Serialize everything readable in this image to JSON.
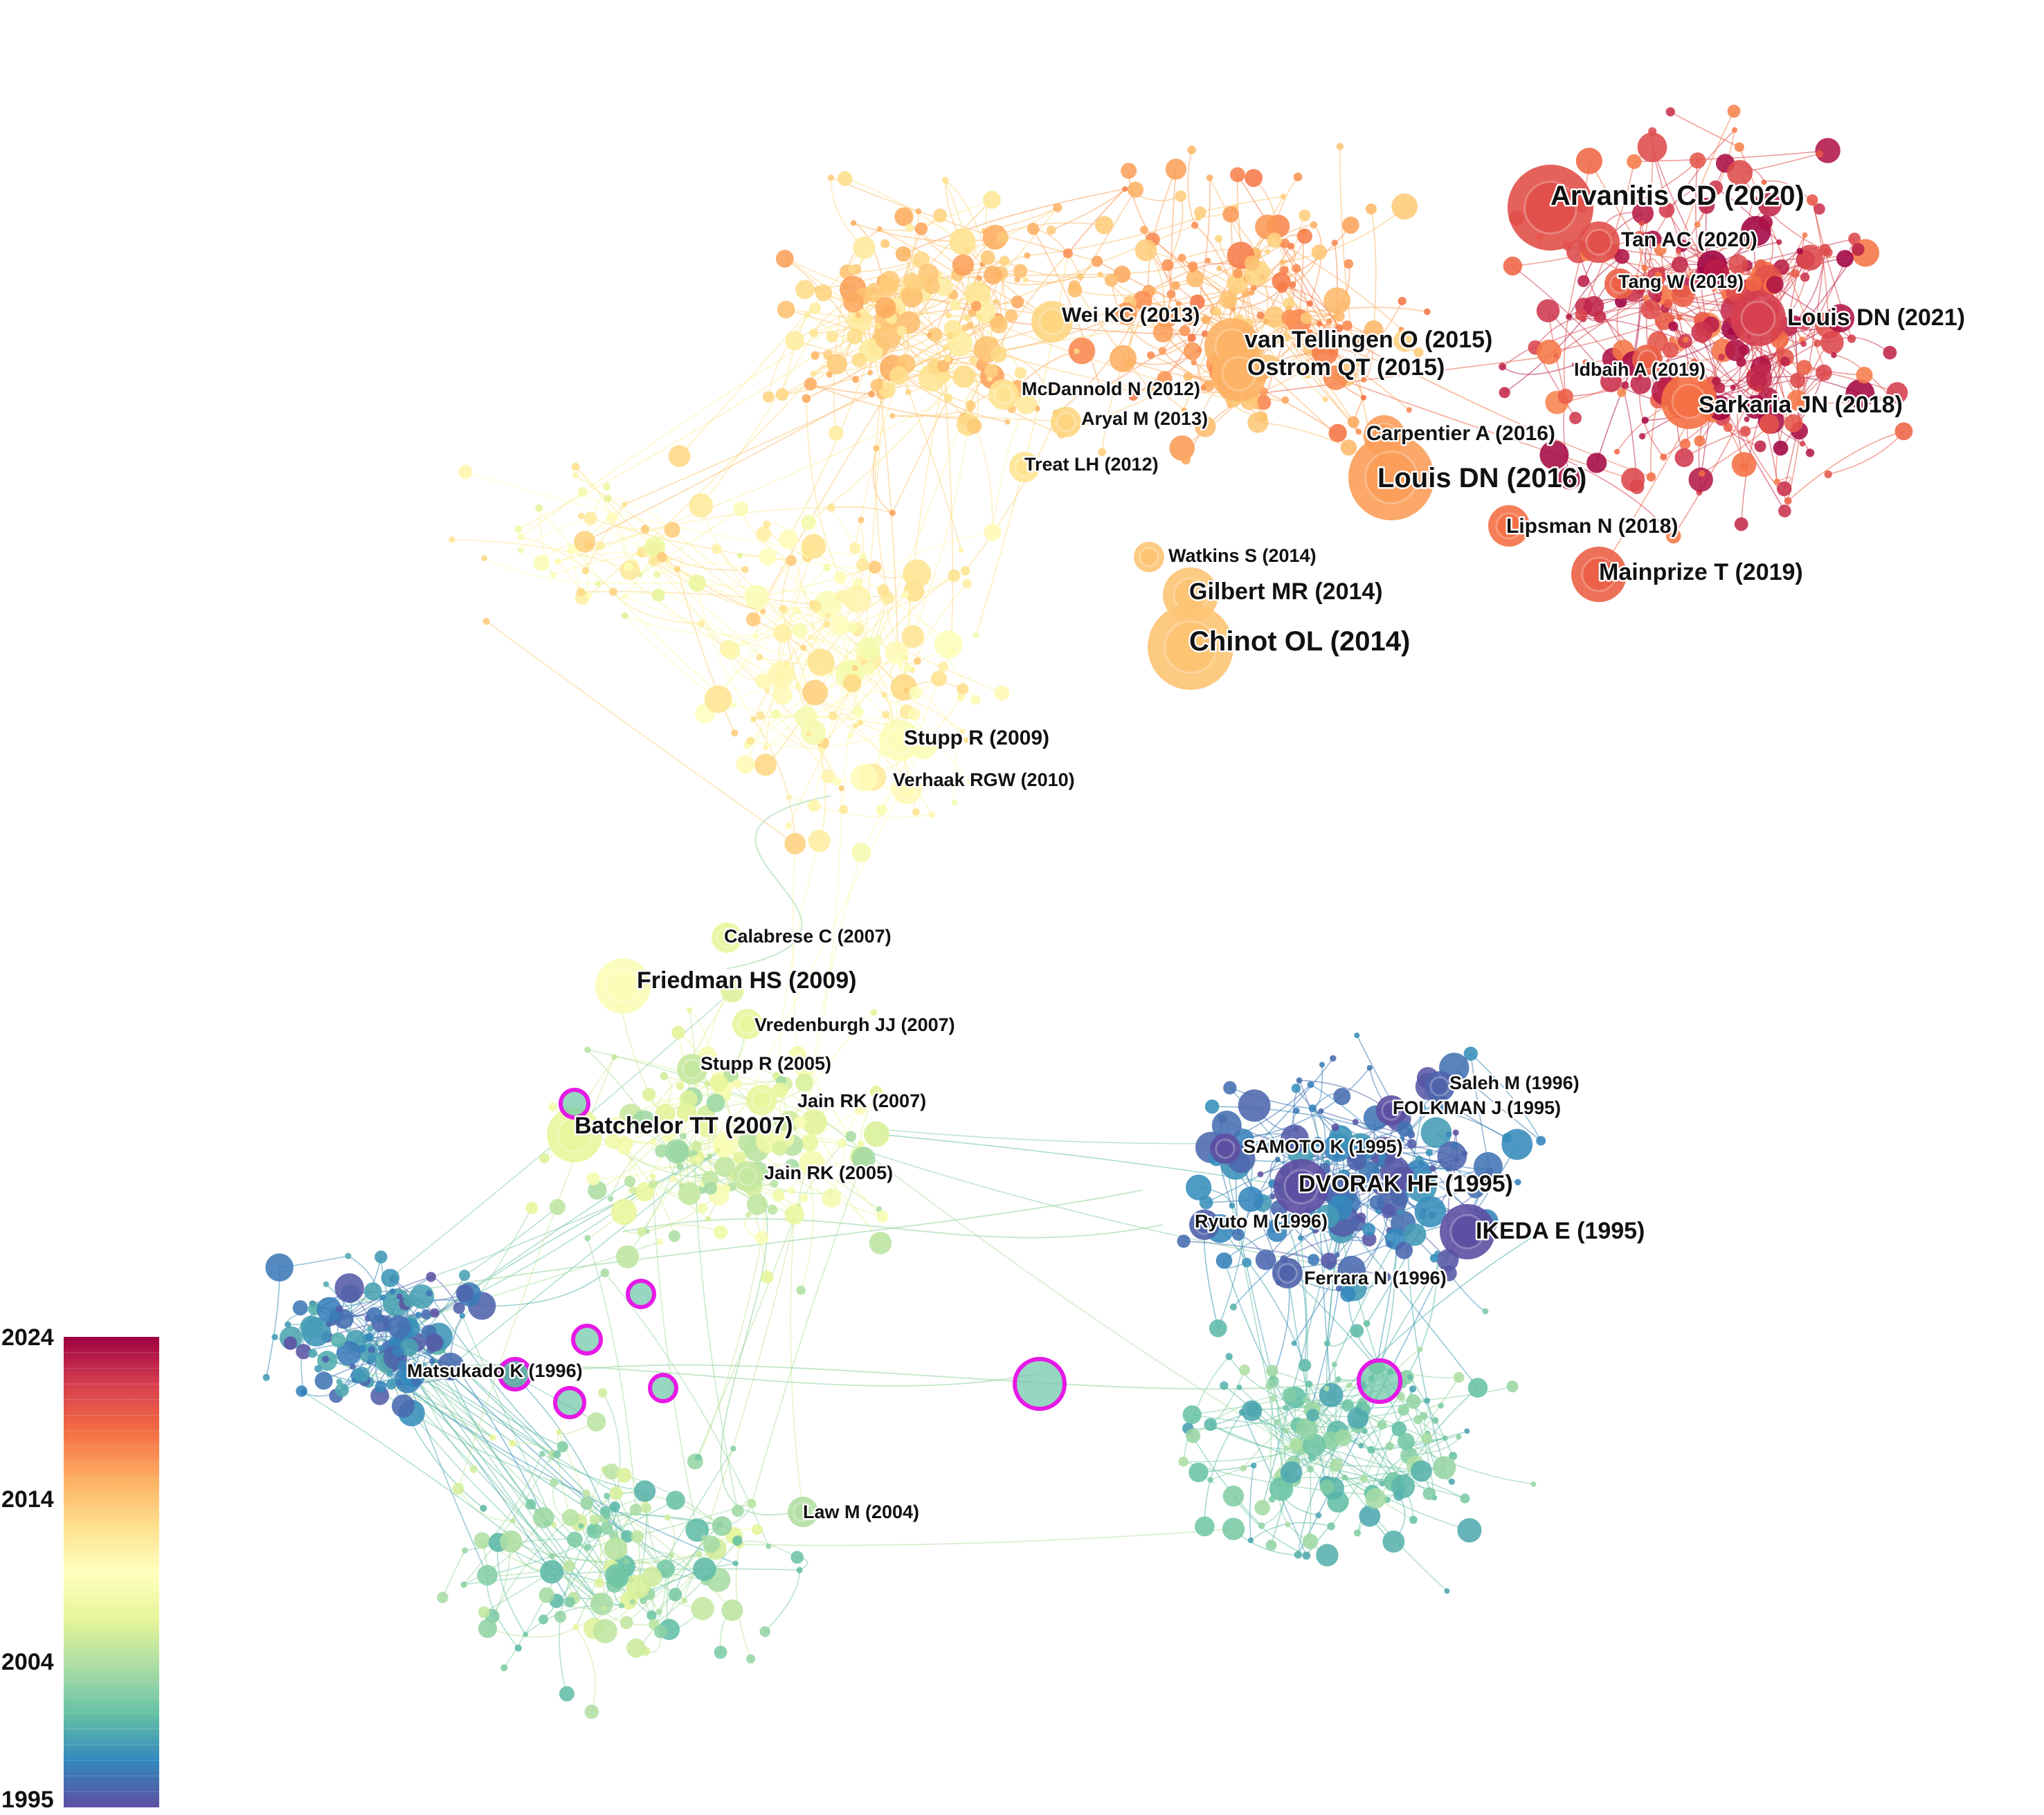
{
  "figure": {
    "type": "citation-network",
    "labels": [
      {
        "text": "Arvanitis CD (2020)",
        "year": 2020,
        "size": "xl"
      },
      {
        "text": "Tan AC (2020)",
        "year": 2020,
        "size": "m"
      },
      {
        "text": "Tang W (2019)",
        "year": 2019,
        "size": "s"
      },
      {
        "text": "Louis DN (2021)",
        "year": 2021,
        "size": "l"
      },
      {
        "text": "Idbaih A (2019)",
        "year": 2019,
        "size": "s"
      },
      {
        "text": "Sarkaria JN (2018)",
        "year": 2018,
        "size": "l"
      },
      {
        "text": "Carpentier A (2016)",
        "year": 2016,
        "size": "m"
      },
      {
        "text": "Louis DN (2016)",
        "year": 2016,
        "size": "xl"
      },
      {
        "text": "Lipsman N (2018)",
        "year": 2018,
        "size": "m"
      },
      {
        "text": "Mainprize T (2019)",
        "year": 2019,
        "size": "l"
      },
      {
        "text": "Wei KC (2013)",
        "year": 2013,
        "size": "m"
      },
      {
        "text": "van Tellingen O (2015)",
        "year": 2015,
        "size": "l"
      },
      {
        "text": "Ostrom QT (2015)",
        "year": 2015,
        "size": "l"
      },
      {
        "text": "McDannold N (2012)",
        "year": 2012,
        "size": "s"
      },
      {
        "text": "Aryal M (2013)",
        "year": 2013,
        "size": "s"
      },
      {
        "text": "Treat LH (2012)",
        "year": 2012,
        "size": "s"
      },
      {
        "text": "Watkins S (2014)",
        "year": 2014,
        "size": "s"
      },
      {
        "text": "Gilbert MR (2014)",
        "year": 2014,
        "size": "l"
      },
      {
        "text": "Chinot OL (2014)",
        "year": 2014,
        "size": "xl"
      },
      {
        "text": "Stupp R (2009)",
        "year": 2009,
        "size": "m"
      },
      {
        "text": "Verhaak RGW (2010)",
        "year": 2010,
        "size": "s"
      },
      {
        "text": "Calabrese C (2007)",
        "year": 2007,
        "size": "s"
      },
      {
        "text": "Friedman HS (2009)",
        "year": 2009,
        "size": "l"
      },
      {
        "text": "Vredenburgh JJ (2007)",
        "year": 2007,
        "size": "s"
      },
      {
        "text": "Stupp R (2005)",
        "year": 2005,
        "size": "s"
      },
      {
        "text": "Jain RK (2007)",
        "year": 2007,
        "size": "s"
      },
      {
        "text": "Batchelor TT (2007)",
        "year": 2007,
        "size": "l"
      },
      {
        "text": "Jain RK (2005)",
        "year": 2005,
        "size": "s"
      },
      {
        "text": "Saleh M (1996)",
        "year": 1996,
        "size": "s"
      },
      {
        "text": "FOLKMAN J (1995)",
        "year": 1995,
        "size": "s"
      },
      {
        "text": "SAMOTO K (1995)",
        "year": 1995,
        "size": "s"
      },
      {
        "text": "DVORAK HF (1995)",
        "year": 1995,
        "size": "l"
      },
      {
        "text": "Ryuto M (1996)",
        "year": 1996,
        "size": "s"
      },
      {
        "text": "IKEDA E (1995)",
        "year": 1995,
        "size": "l"
      },
      {
        "text": "Ferrara N (1996)",
        "year": 1996,
        "size": "s"
      },
      {
        "text": "Matsukado K (1996)",
        "year": 1996,
        "size": "s"
      },
      {
        "text": "Law M (2004)",
        "year": 2004,
        "size": "s"
      }
    ],
    "highlight_color": "#e619e6",
    "colorbar": {
      "min": 1995,
      "max": 2024,
      "ticks": [
        "2024",
        "2014",
        "2004",
        "1995"
      ],
      "stops": [
        "#5e4fa2",
        "#3288bd",
        "#66c2a5",
        "#abdda4",
        "#e6f598",
        "#ffffbf",
        "#fee08b",
        "#fdae61",
        "#f46d43",
        "#d53e4f",
        "#9e0142"
      ]
    }
  }
}
